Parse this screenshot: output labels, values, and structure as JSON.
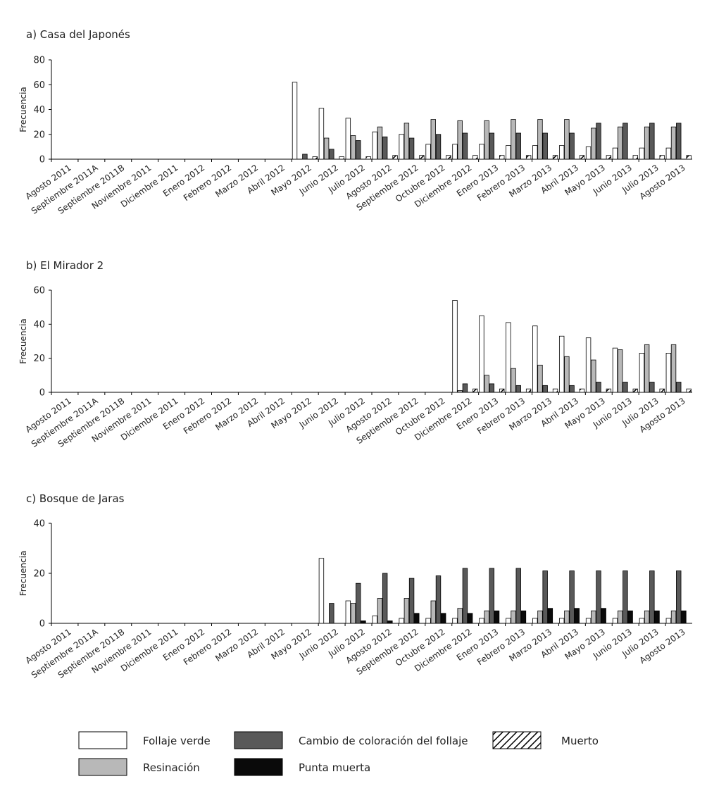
{
  "chart_data": [
    {
      "type": "bar",
      "title": "a) Casa del Japonés",
      "ylabel": "Frecuencia",
      "xlabel": "",
      "ylim": [
        0,
        80
      ],
      "yticks": [
        0,
        20,
        40,
        60,
        80
      ],
      "categories": [
        "Agosto 2011",
        "Septiembre 2011A",
        "Septiembre 2011B",
        "Noviembre 2011",
        "Diciembre 2011",
        "Enero 2012",
        "Febrero 2012",
        "Marzo 2012",
        "Abril 2012",
        "Mayo 2012",
        "Junio 2012",
        "Julio 2012",
        "Agosto 2012",
        "Septiembre 2012",
        "Octubre 2012",
        "Diciembre 2012",
        "Enero 2013",
        "Febrero 2013",
        "Marzo 2013",
        "Abril 2013",
        "Mayo 2013",
        "Junio 2013",
        "Julio 2013",
        "Agosto 2013"
      ],
      "series": [
        {
          "name": "Follaje verde",
          "values": [
            0,
            0,
            0,
            0,
            0,
            0,
            0,
            0,
            0,
            62,
            41,
            33,
            22,
            20,
            12,
            12,
            12,
            11,
            11,
            11,
            10,
            9,
            9,
            9
          ]
        },
        {
          "name": "Resinación",
          "values": [
            0,
            0,
            0,
            0,
            0,
            0,
            0,
            0,
            0,
            0,
            17,
            19,
            26,
            29,
            32,
            31,
            31,
            32,
            32,
            32,
            25,
            26,
            26,
            26
          ]
        },
        {
          "name": "Cambio de coloración del follaje",
          "values": [
            0,
            0,
            0,
            0,
            0,
            0,
            0,
            0,
            0,
            4,
            8,
            15,
            18,
            17,
            20,
            21,
            21,
            21,
            21,
            21,
            29,
            29,
            29,
            29
          ]
        },
        {
          "name": "Punta muerta",
          "values": [
            0,
            0,
            0,
            0,
            0,
            0,
            0,
            0,
            0,
            0,
            0,
            0,
            0,
            0,
            0,
            0,
            0,
            0,
            0,
            0,
            0,
            0,
            0,
            0
          ]
        },
        {
          "name": "Muerto",
          "values": [
            0,
            0,
            0,
            0,
            0,
            0,
            0,
            0,
            0,
            2,
            2,
            2,
            3,
            3,
            3,
            3,
            3,
            3,
            3,
            3,
            3,
            3,
            3,
            3
          ]
        }
      ]
    },
    {
      "type": "bar",
      "title": "b) El Mirador 2",
      "ylabel": "Frecuencia",
      "xlabel": "",
      "ylim": [
        0,
        60
      ],
      "yticks": [
        0,
        20,
        40,
        60
      ],
      "categories": [
        "Agosto 2011",
        "Septiembre 2011A",
        "Septiembre 2011B",
        "Noviembre 2011",
        "Diciembre 2011",
        "Enero 2012",
        "Febrero 2012",
        "Marzo 2012",
        "Abril 2012",
        "Mayo 2012",
        "Junio 2012",
        "Julio 2012",
        "Agosto 2012",
        "Septiembre 2012",
        "Octubre 2012",
        "Diciembre 2012",
        "Enero 2013",
        "Febrero 2013",
        "Marzo 2013",
        "Abril 2013",
        "Mayo 2013",
        "Junio 2013",
        "Julio 2013",
        "Agosto 2013"
      ],
      "series": [
        {
          "name": "Follaje verde",
          "values": [
            0,
            0,
            0,
            0,
            0,
            0,
            0,
            0,
            0,
            0,
            0,
            0,
            0,
            0,
            0,
            54,
            45,
            41,
            39,
            33,
            32,
            26,
            23,
            23
          ]
        },
        {
          "name": "Resinación",
          "values": [
            0,
            0,
            0,
            0,
            0,
            0,
            0,
            0,
            0,
            0,
            0,
            0,
            0,
            0,
            0,
            1,
            10,
            14,
            16,
            21,
            19,
            25,
            28,
            28
          ]
        },
        {
          "name": "Cambio de coloración del follaje",
          "values": [
            0,
            0,
            0,
            0,
            0,
            0,
            0,
            0,
            0,
            0,
            0,
            0,
            0,
            0,
            0,
            5,
            5,
            4,
            4,
            4,
            6,
            6,
            6,
            6
          ]
        },
        {
          "name": "Punta muerta",
          "values": [
            0,
            0,
            0,
            0,
            0,
            0,
            0,
            0,
            0,
            0,
            0,
            0,
            0,
            0,
            0,
            0,
            0,
            0,
            0,
            0,
            0,
            0,
            0,
            0
          ]
        },
        {
          "name": "Muerto",
          "values": [
            0,
            0,
            0,
            0,
            0,
            0,
            0,
            0,
            0,
            0,
            0,
            0,
            0,
            0,
            0,
            2,
            2,
            2,
            2,
            2,
            2,
            2,
            2,
            2
          ]
        }
      ]
    },
    {
      "type": "bar",
      "title": "c) Bosque de Jaras",
      "ylabel": "Frecuencia",
      "xlabel": "",
      "ylim": [
        0,
        40
      ],
      "yticks": [
        0,
        20,
        40
      ],
      "categories": [
        "Agosto 2011",
        "Septiembre 2011A",
        "Septiembre 2011B",
        "Noviembre 2011",
        "Diciembre 2011",
        "Enero 2012",
        "Febrero 2012",
        "Marzo 2012",
        "Abril 2012",
        "Mayo 2012",
        "Junio 2012",
        "Julio 2012",
        "Agosto 2012",
        "Septiembre 2012",
        "Octubre 2012",
        "Diciembre 2012",
        "Enero 2013",
        "Febrero 2013",
        "Marzo 2013",
        "Abril 2013",
        "Mayo 2013",
        "Junio 2013",
        "Julio 2013",
        "Agosto 2013"
      ],
      "series": [
        {
          "name": "Follaje verde",
          "values": [
            0,
            0,
            0,
            0,
            0,
            0,
            0,
            0,
            0,
            0,
            26,
            9,
            3,
            2,
            2,
            2,
            2,
            2,
            2,
            2,
            2,
            2,
            2,
            2
          ]
        },
        {
          "name": "Resinación",
          "values": [
            0,
            0,
            0,
            0,
            0,
            0,
            0,
            0,
            0,
            0,
            0,
            8,
            10,
            10,
            9,
            6,
            5,
            5,
            5,
            5,
            5,
            5,
            5,
            5
          ]
        },
        {
          "name": "Cambio de coloración del follaje",
          "values": [
            0,
            0,
            0,
            0,
            0,
            0,
            0,
            0,
            0,
            0,
            8,
            16,
            20,
            18,
            19,
            22,
            22,
            22,
            21,
            21,
            21,
            21,
            21,
            21
          ]
        },
        {
          "name": "Punta muerta",
          "values": [
            0,
            0,
            0,
            0,
            0,
            0,
            0,
            0,
            0,
            0,
            0,
            1,
            1,
            4,
            4,
            4,
            5,
            5,
            6,
            6,
            6,
            5,
            5,
            5
          ]
        },
        {
          "name": "Muerto",
          "values": [
            0,
            0,
            0,
            0,
            0,
            0,
            0,
            0,
            0,
            0,
            0,
            0,
            0,
            0,
            0,
            0,
            0,
            0,
            0,
            0,
            0,
            0,
            0,
            0
          ]
        }
      ]
    }
  ],
  "legend": [
    {
      "label": "Follaje verde",
      "style": "white"
    },
    {
      "label": "Cambio de coloración del follaje",
      "style": "dark"
    },
    {
      "label": "Muerto",
      "style": "hatch"
    },
    {
      "label": "Resinación",
      "style": "light"
    },
    {
      "label": "Punta muerta",
      "style": "black"
    }
  ],
  "colors": {
    "white": "#ffffff",
    "light": "#b8b8b8",
    "dark": "#595959",
    "black": "#0a0a0a",
    "axis": "#000000"
  }
}
